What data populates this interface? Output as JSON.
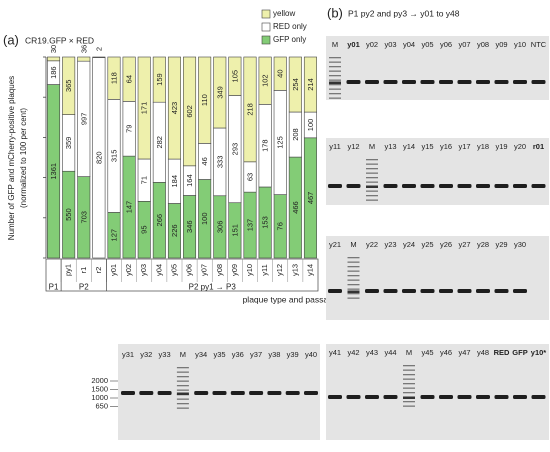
{
  "chart_data": {
    "type": "stacked_percent",
    "panel": "(a)",
    "title": "CR19.GFP × RED",
    "y_label": [
      "Number of GFP and mCherry-positive plaques",
      "(normalized to 100 per cent)"
    ],
    "x_label": "plaque type and passage level",
    "categories": [
      null,
      "py1",
      "r1",
      "r2",
      "y01",
      "y02",
      "y03",
      "y04",
      "y05",
      "y06",
      "y07",
      "y08",
      "y09",
      "y10",
      "y11",
      "y12",
      "y13",
      "y14"
    ],
    "groups": [
      {
        "name": "P1",
        "count": 1
      },
      {
        "name": "P2",
        "count": 3
      },
      {
        "name": "P2 py1 → P3",
        "count": 14
      }
    ],
    "series": [
      {
        "name": "GFP only",
        "color": "#83cc76",
        "values": [
          1361,
          550,
          703,
          0,
          127,
          147,
          95,
          266,
          226,
          346,
          100,
          306,
          151,
          137,
          153,
          76,
          466,
          467
        ]
      },
      {
        "name": "RED only",
        "color": "#ffffff",
        "values": [
          186,
          359,
          997,
          820,
          315,
          79,
          71,
          282,
          184,
          164,
          46,
          333,
          293,
          63,
          178,
          125,
          208,
          100
        ]
      },
      {
        "name": "yellow",
        "color": "#eef0ac",
        "values": [
          30,
          365,
          36,
          2,
          118,
          64,
          171,
          159,
          423,
          602,
          110,
          349,
          105,
          218,
          102,
          40,
          254,
          214
        ]
      }
    ],
    "ylim": [
      0,
      100
    ],
    "yticks": [
      0,
      20,
      40,
      60,
      80,
      100
    ],
    "legend": "top-right"
  },
  "gels": {
    "panel": "(b)",
    "title": "P1 py2 and py3 → y01 to y48",
    "rows": [
      {
        "lanes": [
          {
            "label": "M",
            "ladder": true
          },
          {
            "label": "y01",
            "bold": true
          },
          {
            "label": "y02"
          },
          {
            "label": "y03"
          },
          {
            "label": "y04"
          },
          {
            "label": "y05"
          },
          {
            "label": "y06"
          },
          {
            "label": "y07"
          },
          {
            "label": "y08"
          },
          {
            "label": "y09"
          },
          {
            "label": "y10"
          },
          {
            "label": "NTC"
          }
        ]
      },
      {
        "lanes": [
          {
            "label": "y11"
          },
          {
            "label": "y12"
          },
          {
            "label": "M",
            "ladder": true
          },
          {
            "label": "y13"
          },
          {
            "label": "y14"
          },
          {
            "label": "y15"
          },
          {
            "label": "y16"
          },
          {
            "label": "y17"
          },
          {
            "label": "y18"
          },
          {
            "label": "y19"
          },
          {
            "label": "y20"
          },
          {
            "label": "r01",
            "bold": true
          }
        ]
      },
      {
        "lanes": [
          {
            "label": "y21"
          },
          {
            "label": "M",
            "ladder": true
          },
          {
            "label": "y22"
          },
          {
            "label": "y23"
          },
          {
            "label": "y24"
          },
          {
            "label": "y25"
          },
          {
            "label": "y26"
          },
          {
            "label": "y27"
          },
          {
            "label": "y28"
          },
          {
            "label": "y29"
          },
          {
            "label": "y30"
          }
        ]
      },
      {
        "lanes": [
          {
            "label": "y41"
          },
          {
            "label": "y42"
          },
          {
            "label": "y43"
          },
          {
            "label": "y44"
          },
          {
            "label": "M",
            "ladder": true
          },
          {
            "label": "y45"
          },
          {
            "label": "y46"
          },
          {
            "label": "y47"
          },
          {
            "label": "y48"
          },
          {
            "label": "RED",
            "bold": true
          },
          {
            "label": "GFP",
            "bold": true
          },
          {
            "label": "y10*",
            "bold": true
          }
        ]
      }
    ],
    "extra": {
      "lanes": [
        {
          "label": "y31"
        },
        {
          "label": "y32"
        },
        {
          "label": "y33"
        },
        {
          "label": "M",
          "ladder": true
        },
        {
          "label": "y34"
        },
        {
          "label": "y35"
        },
        {
          "label": "y36"
        },
        {
          "label": "y37"
        },
        {
          "label": "y38"
        },
        {
          "label": "y39"
        },
        {
          "label": "y40"
        }
      ],
      "size_markers": [
        2000,
        1500,
        1000,
        650
      ]
    }
  }
}
